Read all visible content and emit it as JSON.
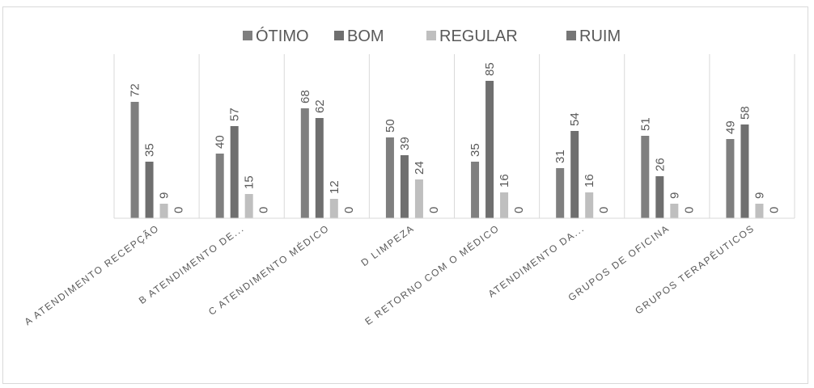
{
  "chart_data": {
    "type": "bar",
    "title": "",
    "xlabel": "",
    "ylabel": "",
    "ylim": [
      0,
      85
    ],
    "grid": "vertical category separators only",
    "legend_position": "top",
    "categories": [
      "A ATENDIMENTO RECEPÇÃO",
      "B ATENDIMENTO DE...",
      "C ATENDIMENTO MÉDICO",
      "D LIMPEZA",
      "E RETORNO COM O MÉDICO",
      "ATENDIMENTO DA...",
      "GRUPOS DE OFICINA",
      "GRUPOS TERAPÊUTICOS"
    ],
    "series": [
      {
        "name": "ÓTIMO",
        "color": "#7f7f7f",
        "values": [
          72,
          40,
          68,
          50,
          35,
          31,
          51,
          49
        ]
      },
      {
        "name": "BOM",
        "color": "#6f6f6f",
        "values": [
          35,
          57,
          62,
          39,
          85,
          54,
          26,
          58
        ]
      },
      {
        "name": "REGULAR",
        "color": "#bfbfbf",
        "values": [
          9,
          15,
          12,
          24,
          16,
          16,
          9,
          9
        ]
      },
      {
        "name": "RUIM",
        "color": "#767676",
        "values": [
          0,
          0,
          0,
          0,
          0,
          0,
          0,
          0
        ]
      }
    ]
  }
}
